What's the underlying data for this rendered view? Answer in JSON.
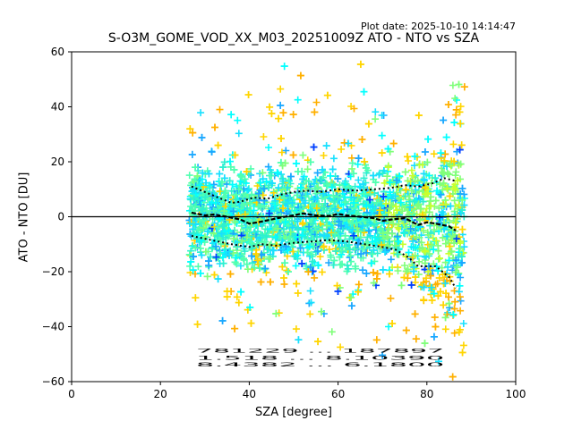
{
  "plot_date": "Plot date: 2025-10-10 14:14:47",
  "chart_data": {
    "type": "scatter",
    "title": "S-O3M_GOME_VOD_XX_M03_20251009Z ATO - NTO vs SZA",
    "xlabel": "SZA [degree]",
    "ylabel": "ATO - NTO [DU]",
    "xlim": [
      0,
      100
    ],
    "ylim": [
      -60,
      60
    ],
    "x_ticks": [
      0,
      20,
      40,
      60,
      80,
      100
    ],
    "y_ticks": [
      -60,
      -40,
      -20,
      0,
      20,
      40,
      60
    ],
    "x_tick_labels": [
      "0",
      "20",
      "40",
      "60",
      "80",
      "100"
    ],
    "y_tick_labels": [
      "−60",
      "−40",
      "−20",
      "0",
      "20",
      "40",
      "60"
    ],
    "reference_line_y": 0,
    "marker": "+",
    "sza_range": [
      26.5,
      88.5
    ],
    "palette": [
      "#50ffb0",
      "#2df0d0",
      "#18e0ff",
      "#1aa8ff",
      "#00ffff",
      "#80ff7a",
      "#c8ff2d",
      "#e8ff00",
      "#ffd500",
      "#ffb000",
      "#0040ff"
    ],
    "mean": [
      {
        "x": 27,
        "y": 1.5
      },
      {
        "x": 30,
        "y": 0.5
      },
      {
        "x": 32,
        "y": 0.8
      },
      {
        "x": 35,
        "y": 0
      },
      {
        "x": 38,
        "y": -1
      },
      {
        "x": 40,
        "y": -2.5
      },
      {
        "x": 42,
        "y": -2
      },
      {
        "x": 45,
        "y": -1
      },
      {
        "x": 48,
        "y": 0
      },
      {
        "x": 50,
        "y": 0.5
      },
      {
        "x": 52,
        "y": 1.2
      },
      {
        "x": 55,
        "y": 0.5
      },
      {
        "x": 58,
        "y": 0.3
      },
      {
        "x": 60,
        "y": 1
      },
      {
        "x": 62,
        "y": 0.5
      },
      {
        "x": 65,
        "y": 0
      },
      {
        "x": 68,
        "y": -0.5
      },
      {
        "x": 70,
        "y": -1.5
      },
      {
        "x": 72,
        "y": -1
      },
      {
        "x": 75,
        "y": -0.5
      },
      {
        "x": 78,
        "y": -3
      },
      {
        "x": 80,
        "y": -2
      },
      {
        "x": 82,
        "y": -2.5
      },
      {
        "x": 85,
        "y": -3.5
      },
      {
        "x": 86.5,
        "y": -5
      }
    ],
    "upper": [
      {
        "x": 27,
        "y": 11
      },
      {
        "x": 30,
        "y": 9
      },
      {
        "x": 33,
        "y": 7
      },
      {
        "x": 36,
        "y": 5
      },
      {
        "x": 38,
        "y": 5.5
      },
      {
        "x": 41,
        "y": 7
      },
      {
        "x": 44,
        "y": 6.5
      },
      {
        "x": 47,
        "y": 8
      },
      {
        "x": 50,
        "y": 9
      },
      {
        "x": 53,
        "y": 9.5
      },
      {
        "x": 56,
        "y": 9
      },
      {
        "x": 60,
        "y": 10
      },
      {
        "x": 64,
        "y": 9.5
      },
      {
        "x": 68,
        "y": 10
      },
      {
        "x": 72,
        "y": 10.5
      },
      {
        "x": 75,
        "y": 11.5
      },
      {
        "x": 78,
        "y": 11
      },
      {
        "x": 81,
        "y": 12
      },
      {
        "x": 84,
        "y": 14
      },
      {
        "x": 86.5,
        "y": 13
      }
    ],
    "lower": [
      {
        "x": 27,
        "y": -7
      },
      {
        "x": 30,
        "y": -8
      },
      {
        "x": 33,
        "y": -9
      },
      {
        "x": 36,
        "y": -10
      },
      {
        "x": 40,
        "y": -11
      },
      {
        "x": 43,
        "y": -10
      },
      {
        "x": 46,
        "y": -10.5
      },
      {
        "x": 50,
        "y": -9.5
      },
      {
        "x": 54,
        "y": -9
      },
      {
        "x": 58,
        "y": -8.5
      },
      {
        "x": 62,
        "y": -9
      },
      {
        "x": 66,
        "y": -10
      },
      {
        "x": 70,
        "y": -11
      },
      {
        "x": 73,
        "y": -12
      },
      {
        "x": 76,
        "y": -15
      },
      {
        "x": 78,
        "y": -18
      },
      {
        "x": 82,
        "y": -18
      },
      {
        "x": 85,
        "y": -22
      },
      {
        "x": 86.5,
        "y": -26
      }
    ],
    "count_annotations": {
      "rows": [
        "781229 ... 187897",
        "1.518 ... 8.10390",
        "8.4382 ... 6.1800"
      ],
      "y_values": [
        -49.5,
        -52,
        -54.5
      ],
      "x_range": [
        28,
        92
      ]
    }
  }
}
